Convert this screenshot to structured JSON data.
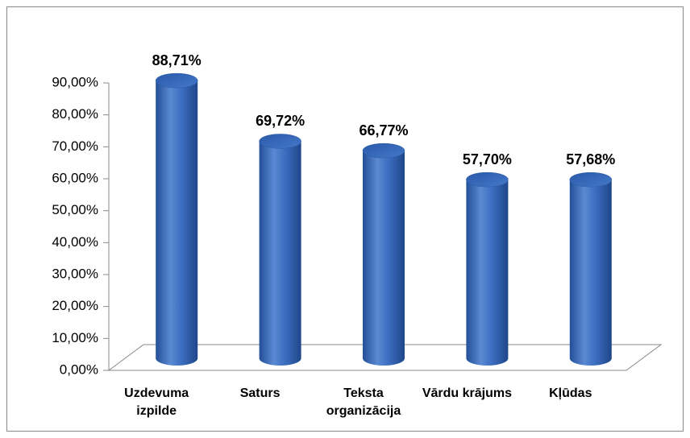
{
  "chart_data": {
    "type": "bar",
    "categories": [
      "Uzdevuma izpilde",
      "Saturs",
      "Teksta organizācija",
      "Vārdu krājums",
      "Kļūdas"
    ],
    "values": [
      88.71,
      69.72,
      66.77,
      57.7,
      57.68
    ],
    "value_labels": [
      "88,71%",
      "69,72%",
      "66,77%",
      "57,70%",
      "57,68%"
    ],
    "color": "#3a6cc0",
    "ylim": [
      0,
      90
    ],
    "yticks": [
      {
        "value": 0,
        "label": "0,00%"
      },
      {
        "value": 10,
        "label": "10,00%"
      },
      {
        "value": 20,
        "label": "20,00%"
      },
      {
        "value": 30,
        "label": "30,00%"
      },
      {
        "value": 40,
        "label": "40,00%"
      },
      {
        "value": 50,
        "label": "50,00%"
      },
      {
        "value": 60,
        "label": "60,00%"
      },
      {
        "value": 70,
        "label": "70,00%"
      },
      {
        "value": 80,
        "label": "80,00%"
      },
      {
        "value": 90,
        "label": "90,00%"
      }
    ],
    "grid": false
  }
}
